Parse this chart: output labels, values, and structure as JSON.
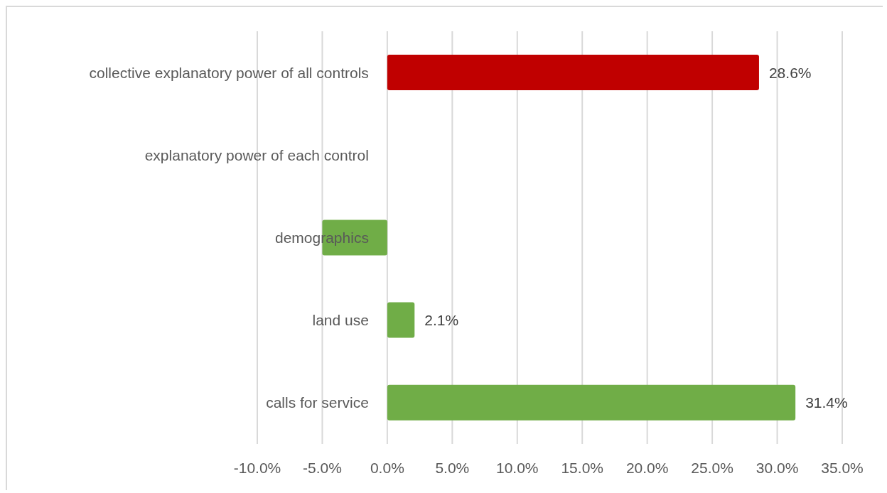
{
  "chart_data": {
    "type": "bar",
    "orientation": "horizontal",
    "categories": [
      "collective explanatory power of all controls",
      "explanatory power of each control",
      "demographics",
      "land use",
      "calls for service"
    ],
    "values": [
      28.6,
      null,
      -5.0,
      2.1,
      31.4
    ],
    "colors": [
      "#c00000",
      null,
      "#70ad47",
      "#70ad47",
      "#70ad47"
    ],
    "value_labels": [
      "28.6%",
      null,
      null,
      "2.1%",
      "31.4%"
    ],
    "xlim": [
      -10,
      35
    ],
    "xticks": [
      {
        "value": -10,
        "label": "-10.0%"
      },
      {
        "value": -5,
        "label": "-5.0%"
      },
      {
        "value": 0,
        "label": "0.0%"
      },
      {
        "value": 5,
        "label": "5.0%"
      },
      {
        "value": 10,
        "label": "10.0%"
      },
      {
        "value": 15,
        "label": "15.0%"
      },
      {
        "value": 20,
        "label": "20.0%"
      },
      {
        "value": 25,
        "label": "25.0%"
      },
      {
        "value": 30,
        "label": "30.0%"
      },
      {
        "value": 35,
        "label": "35.0%"
      }
    ],
    "grid": "x"
  }
}
